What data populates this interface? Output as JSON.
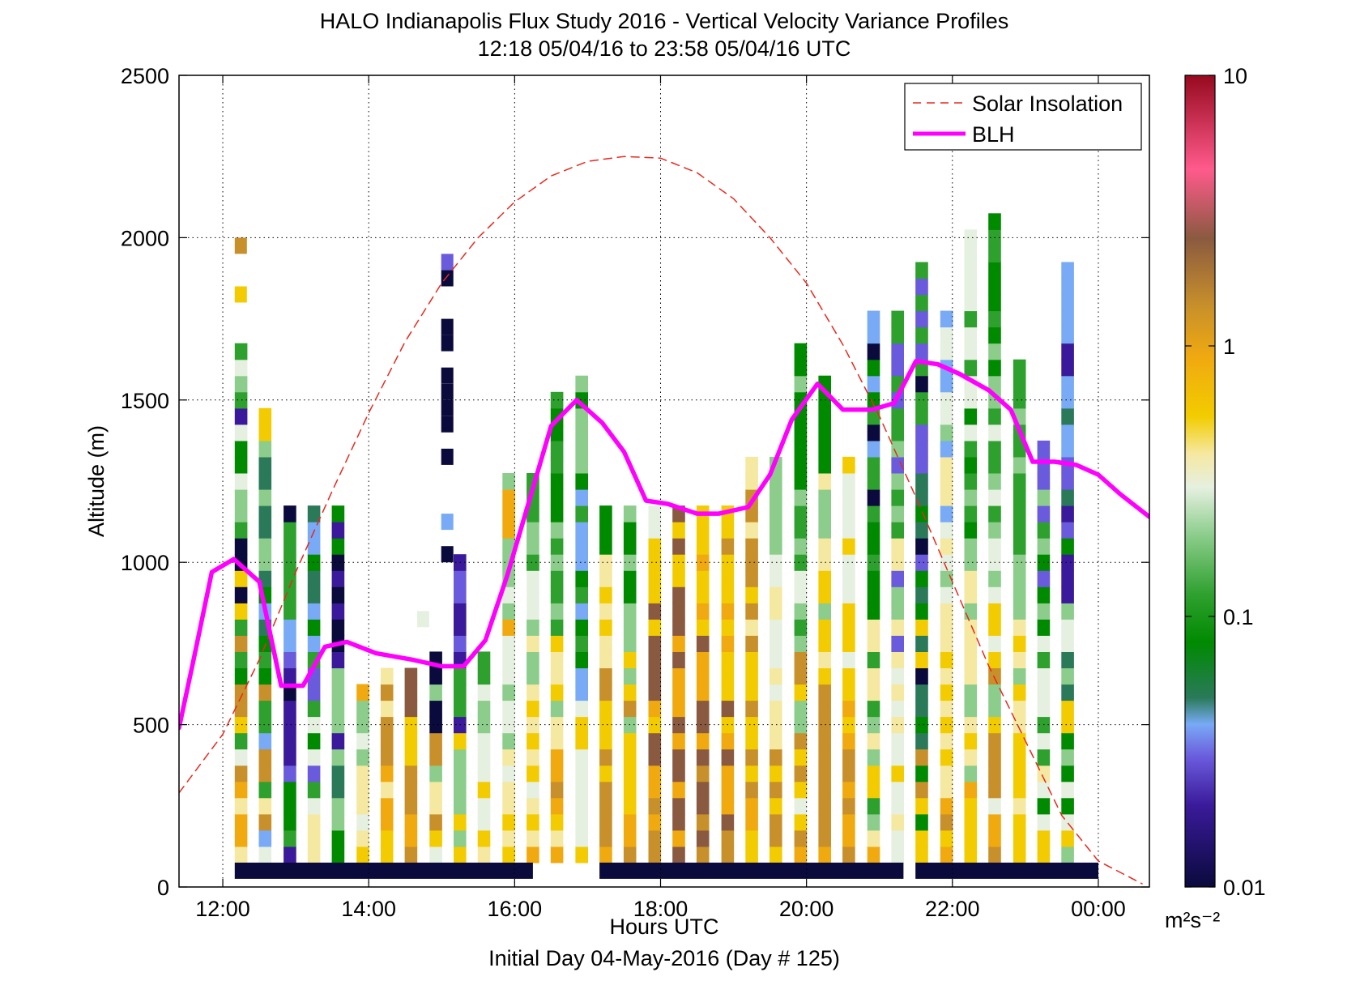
{
  "chart_data": {
    "type": "heatmap",
    "title": "HALO Indianapolis Flux Study 2016 - Vertical Velocity Variance Profiles",
    "subtitle": "12:18 05/04/16 to 23:58 05/04/16  UTC",
    "xlabel": "Hours UTC",
    "xlabel2": "Initial Day 04-May-2016 (Day # 125)",
    "ylabel": "Altitude (m)",
    "xlim": [
      11.4,
      24.7
    ],
    "ylim": [
      0,
      2500
    ],
    "x_ticks": [
      12,
      14,
      16,
      18,
      20,
      22,
      24
    ],
    "x_tick_labels": [
      "12:00",
      "14:00",
      "16:00",
      "18:00",
      "20:00",
      "22:00",
      "00:00"
    ],
    "y_ticks": [
      0,
      500,
      1000,
      1500,
      2000,
      2500
    ],
    "y_tick_labels": [
      "0",
      "500",
      "1000",
      "1500",
      "2000",
      "2500"
    ],
    "grid": true,
    "legend_position": "top-right",
    "colorbar": {
      "scale": "log",
      "range": [
        0.01,
        10
      ],
      "tick_values": [
        0.01,
        0.1,
        1,
        10
      ],
      "tick_labels": [
        "0.01",
        "0.1",
        "1",
        "10"
      ],
      "units_label": "m²s⁻²",
      "color_stops": [
        {
          "v": 0.01,
          "color": "#0a0a3c"
        },
        {
          "v": 0.02,
          "color": "#3a1a9a"
        },
        {
          "v": 0.03,
          "color": "#6a5adc"
        },
        {
          "v": 0.04,
          "color": "#78aaf5"
        },
        {
          "v": 0.05,
          "color": "#2a7a5a"
        },
        {
          "v": 0.08,
          "color": "#008a00"
        },
        {
          "v": 0.12,
          "color": "#2ea02e"
        },
        {
          "v": 0.2,
          "color": "#8ccd8c"
        },
        {
          "v": 0.3,
          "color": "#e6f0e0"
        },
        {
          "v": 0.4,
          "color": "#f5e8a0"
        },
        {
          "v": 0.55,
          "color": "#f2cc00"
        },
        {
          "v": 0.9,
          "color": "#f0aa10"
        },
        {
          "v": 1.4,
          "color": "#c8902a"
        },
        {
          "v": 2.5,
          "color": "#8a5a40"
        },
        {
          "v": 4.5,
          "color": "#ff5a8c"
        },
        {
          "v": 10,
          "color": "#960a1e"
        }
      ]
    },
    "series": [
      {
        "name": "Solar Insolation",
        "style": "dashed",
        "color": "#e8281e",
        "x": [
          11.4,
          12.0,
          12.5,
          13.0,
          13.5,
          14.0,
          14.5,
          15.0,
          15.5,
          16.0,
          16.5,
          17.0,
          17.5,
          18.0,
          18.5,
          19.0,
          19.5,
          20.0,
          20.5,
          21.0,
          21.5,
          22.0,
          22.5,
          23.0,
          23.5,
          24.0,
          24.6
        ],
        "y": [
          290,
          470,
          700,
          970,
          1220,
          1460,
          1680,
          1860,
          2000,
          2110,
          2190,
          2235,
          2250,
          2245,
          2200,
          2120,
          2000,
          1860,
          1670,
          1450,
          1200,
          940,
          680,
          450,
          220,
          80,
          10
        ]
      },
      {
        "name": "BLH",
        "style": "solid",
        "color": "#ff00ff",
        "x": [
          11.4,
          11.6,
          11.85,
          12.15,
          12.5,
          12.8,
          13.1,
          13.4,
          13.7,
          14.1,
          14.6,
          15.0,
          15.3,
          15.6,
          15.9,
          16.2,
          16.5,
          16.85,
          17.2,
          17.5,
          17.8,
          18.1,
          18.5,
          18.8,
          19.2,
          19.5,
          19.8,
          20.15,
          20.5,
          20.9,
          21.2,
          21.5,
          21.8,
          22.1,
          22.5,
          22.8,
          23.1,
          23.4,
          23.7,
          24.0,
          24.3,
          24.7
        ],
        "y": [
          490,
          700,
          970,
          1010,
          940,
          620,
          620,
          740,
          755,
          720,
          700,
          680,
          680,
          760,
          960,
          1190,
          1420,
          1500,
          1430,
          1340,
          1190,
          1180,
          1150,
          1150,
          1170,
          1270,
          1440,
          1550,
          1470,
          1470,
          1490,
          1620,
          1610,
          1580,
          1530,
          1470,
          1310,
          1310,
          1300,
          1270,
          1210,
          1140
        ]
      }
    ],
    "heatmap": {
      "column_width_hours": 0.1667,
      "bin_height_m": 50,
      "columns": [
        {
          "x": 12.33,
          "y0": 75,
          "palette": [
            "#c8902a",
            "#f0aa10",
            "#e6f0e0",
            "#f5e8a0",
            "#f0aa10",
            "#c8902a",
            "#c8902a",
            "#f2cc00",
            "#8ccd8c",
            "#2ea02e",
            "#008a00",
            "#0a0a3c",
            "#3a1a9a",
            "#008a00",
            "#2ea02e",
            "#8ccd8c",
            "#e6f0e0"
          ],
          "n": 32
        },
        {
          "x": 12.66,
          "y0": 75,
          "palette": [
            "#e6f0e0",
            "#f5e8a0",
            "#c8902a",
            "#2ea02e",
            "#78aaf5",
            "#2a7a5a",
            "#008a00",
            "#8ccd8c",
            "#f2cc00"
          ],
          "n": 28
        },
        {
          "x": 13.0,
          "y0": 75,
          "palette": [
            "#8ccd8c",
            "#2ea02e",
            "#008a00",
            "#3a1a9a",
            "#6a5adc",
            "#0a0a3c",
            "#78aaf5",
            "#2ea02e"
          ],
          "n": 22
        },
        {
          "x": 13.33,
          "y0": 75,
          "palette": [
            "#8ccd8c",
            "#f5e8a0",
            "#e6f0e0",
            "#2ea02e",
            "#6a5adc",
            "#008a00",
            "#2a7a5a",
            "#78aaf5"
          ],
          "n": 22
        },
        {
          "x": 13.66,
          "y0": 75,
          "palette": [
            "#008a00",
            "#2ea02e",
            "#8ccd8c",
            "#2a7a5a",
            "#3a1a9a",
            "#0a0a3c",
            "#008a00"
          ],
          "n": 22
        },
        {
          "x": 14.0,
          "y0": 75,
          "palette": [
            "#f2cc00",
            "#f5e8a0",
            "#e6f0e0",
            "#8ccd8c",
            "#f0aa10"
          ],
          "n": 11
        },
        {
          "x": 14.33,
          "y0": 75,
          "palette": [
            "#f2cc00",
            "#f0aa10",
            "#f5e8a0",
            "#c8902a"
          ],
          "n": 12
        },
        {
          "x": 14.66,
          "y0": 75,
          "palette": [
            "#f0aa10",
            "#c8902a",
            "#f2cc00",
            "#8a5a40"
          ],
          "n": 12
        },
        {
          "x": 15.0,
          "y0": 75,
          "palette": [
            "#f2cc00",
            "#e6f0e0",
            "#f5e8a0",
            "#c8902a",
            "#8ccd8c",
            "#0a0a3c"
          ],
          "n": 13
        },
        {
          "x": 15.33,
          "y0": 75,
          "palette": [
            "#f5e8a0",
            "#e6f0e0",
            "#f2cc00",
            "#8ccd8c",
            "#2ea02e",
            "#3a1a9a",
            "#6a5adc"
          ],
          "n": 19
        },
        {
          "x": 15.66,
          "y0": 75,
          "palette": [
            "#f5e8a0",
            "#f2cc00",
            "#e6f0e0",
            "#8ccd8c",
            "#2ea02e"
          ],
          "n": 13
        },
        {
          "x": 16.0,
          "y0": 75,
          "palette": [
            "#f2cc00",
            "#f5e8a0",
            "#e6f0e0",
            "#8ccd8c",
            "#f0aa10"
          ],
          "n": 24
        },
        {
          "x": 16.33,
          "y0": 75,
          "palette": [
            "#f0aa10",
            "#f2cc00",
            "#f5e8a0",
            "#e6f0e0",
            "#8ccd8c",
            "#2ea02e"
          ],
          "n": 24
        },
        {
          "x": 16.66,
          "y0": 75,
          "palette": [
            "#c8902a",
            "#f0aa10",
            "#f2cc00",
            "#f5e8a0",
            "#8ccd8c",
            "#2ea02e",
            "#008a00"
          ],
          "n": 29
        },
        {
          "x": 17.0,
          "y0": 75,
          "palette": [
            "#f0aa10",
            "#f2cc00",
            "#e6f0e0",
            "#2ea02e",
            "#78aaf5",
            "#008a00",
            "#8ccd8c"
          ],
          "n": 30
        },
        {
          "x": 17.33,
          "y0": 75,
          "palette": [
            "#f0aa10",
            "#c8902a",
            "#f2cc00",
            "#f5e8a0",
            "#008a00"
          ],
          "n": 22
        },
        {
          "x": 17.66,
          "y0": 75,
          "palette": [
            "#f0aa10",
            "#c8902a",
            "#f2cc00",
            "#8ccd8c",
            "#008a00"
          ],
          "n": 22
        },
        {
          "x": 18.0,
          "y0": 75,
          "palette": [
            "#c8902a",
            "#f0aa10",
            "#8a5a40",
            "#f2cc00",
            "#e6f0e0"
          ],
          "n": 22
        },
        {
          "x": 18.33,
          "y0": 75,
          "palette": [
            "#c8902a",
            "#8a5a40",
            "#f0aa10",
            "#8a5a40",
            "#f2cc00"
          ],
          "n": 22
        },
        {
          "x": 18.66,
          "y0": 75,
          "palette": [
            "#c8902a",
            "#8a5a40",
            "#f0aa10",
            "#f2cc00"
          ],
          "n": 22
        },
        {
          "x": 19.0,
          "y0": 75,
          "palette": [
            "#c8902a",
            "#8a5a40",
            "#f0aa10",
            "#f2cc00",
            "#c8902a"
          ],
          "n": 22
        },
        {
          "x": 19.33,
          "y0": 75,
          "palette": [
            "#f0aa10",
            "#f2cc00",
            "#c8902a",
            "#f5e8a0"
          ],
          "n": 25
        },
        {
          "x": 19.66,
          "y0": 75,
          "palette": [
            "#c8902a",
            "#f2cc00",
            "#f5e8a0",
            "#e6f0e0",
            "#8ccd8c"
          ],
          "n": 25
        },
        {
          "x": 20.0,
          "y0": 75,
          "palette": [
            "#f0aa10",
            "#f2cc00",
            "#c8902a",
            "#e6f0e0",
            "#8ccd8c",
            "#2ea02e",
            "#008a00"
          ],
          "n": 32
        },
        {
          "x": 20.33,
          "y0": 75,
          "palette": [
            "#f0aa10",
            "#c8902a",
            "#f2cc00",
            "#f5e8a0",
            "#8ccd8c",
            "#008a00"
          ],
          "n": 30
        },
        {
          "x": 20.66,
          "y0": 75,
          "palette": [
            "#c8902a",
            "#f0aa10",
            "#f2cc00",
            "#e6f0e0"
          ],
          "n": 25
        },
        {
          "x": 21.0,
          "y0": 75,
          "palette": [
            "#f0aa10",
            "#f2cc00",
            "#f5e8a0",
            "#8ccd8c",
            "#2ea02e",
            "#008a00",
            "#0a0a3c",
            "#78aaf5"
          ],
          "n": 34
        },
        {
          "x": 21.33,
          "y0": 75,
          "palette": [
            "#f2cc00",
            "#e6f0e0",
            "#f5e8a0",
            "#8ccd8c",
            "#6a5adc",
            "#2ea02e"
          ],
          "n": 34
        },
        {
          "x": 21.66,
          "y0": 75,
          "palette": [
            "#f0aa10",
            "#c8902a",
            "#f2cc00",
            "#008a00",
            "#2a7a5a",
            "#0a0a3c",
            "#6a5adc",
            "#2ea02e"
          ],
          "n": 37
        },
        {
          "x": 22.0,
          "y0": 75,
          "palette": [
            "#f0aa10",
            "#c8902a",
            "#f2cc00",
            "#f5e8a0",
            "#8ccd8c",
            "#e6f0e0",
            "#78aaf5"
          ],
          "n": 34
        },
        {
          "x": 22.33,
          "y0": 75,
          "palette": [
            "#f0aa10",
            "#f2cc00",
            "#f5e8a0",
            "#8ccd8c",
            "#2ea02e",
            "#008a00",
            "#e6f0e0"
          ],
          "n": 39
        },
        {
          "x": 22.66,
          "y0": 75,
          "palette": [
            "#f0aa10",
            "#c8902a",
            "#f2cc00",
            "#e6f0e0",
            "#8ccd8c",
            "#2ea02e",
            "#008a00"
          ],
          "n": 40
        },
        {
          "x": 23.0,
          "y0": 75,
          "palette": [
            "#f0aa10",
            "#f2cc00",
            "#f5e8a0",
            "#8ccd8c",
            "#2ea02e"
          ],
          "n": 31
        },
        {
          "x": 23.33,
          "y0": 75,
          "palette": [
            "#f2cc00",
            "#f5e8a0",
            "#e6f0e0",
            "#008a00",
            "#2ea02e",
            "#8ccd8c",
            "#6a5adc"
          ],
          "n": 26
        },
        {
          "x": 23.66,
          "y0": 75,
          "palette": [
            "#f0aa10",
            "#f2cc00",
            "#e6f0e0",
            "#8ccd8c",
            "#008a00",
            "#2a7a5a",
            "#3a1a9a",
            "#6a5adc",
            "#78aaf5"
          ],
          "n": 37
        }
      ],
      "bottom_band": {
        "color": "#0a0a3c",
        "segments": [
          [
            12.33,
            16.25
          ],
          [
            17.33,
            21.33
          ],
          [
            21.66,
            24.0
          ]
        ]
      },
      "isolated_cells": [
        {
          "x": 12.33,
          "y": 1950,
          "color": "#c8902a"
        },
        {
          "x": 12.33,
          "y": 1800,
          "color": "#f2cc00"
        },
        {
          "x": 15.16,
          "y": 1900,
          "color": "#6a5adc"
        },
        {
          "x": 15.16,
          "y": 1850,
          "color": "#0a0a3c"
        },
        {
          "x": 15.16,
          "y": 1700,
          "color": "#0a0a3c"
        },
        {
          "x": 15.16,
          "y": 1650,
          "color": "#0a0a3c"
        },
        {
          "x": 15.16,
          "y": 1550,
          "color": "#0a0a3c"
        },
        {
          "x": 15.16,
          "y": 1500,
          "color": "#0a0a3c"
        },
        {
          "x": 15.16,
          "y": 1450,
          "color": "#0a0a3c"
        },
        {
          "x": 15.16,
          "y": 1400,
          "color": "#0a0a3c"
        },
        {
          "x": 15.16,
          "y": 1300,
          "color": "#0a0a3c"
        },
        {
          "x": 15.16,
          "y": 1100,
          "color": "#78aaf5"
        },
        {
          "x": 15.16,
          "y": 1000,
          "color": "#0a0a3c"
        },
        {
          "x": 14.83,
          "y": 800,
          "color": "#e6f0e0"
        }
      ]
    }
  }
}
